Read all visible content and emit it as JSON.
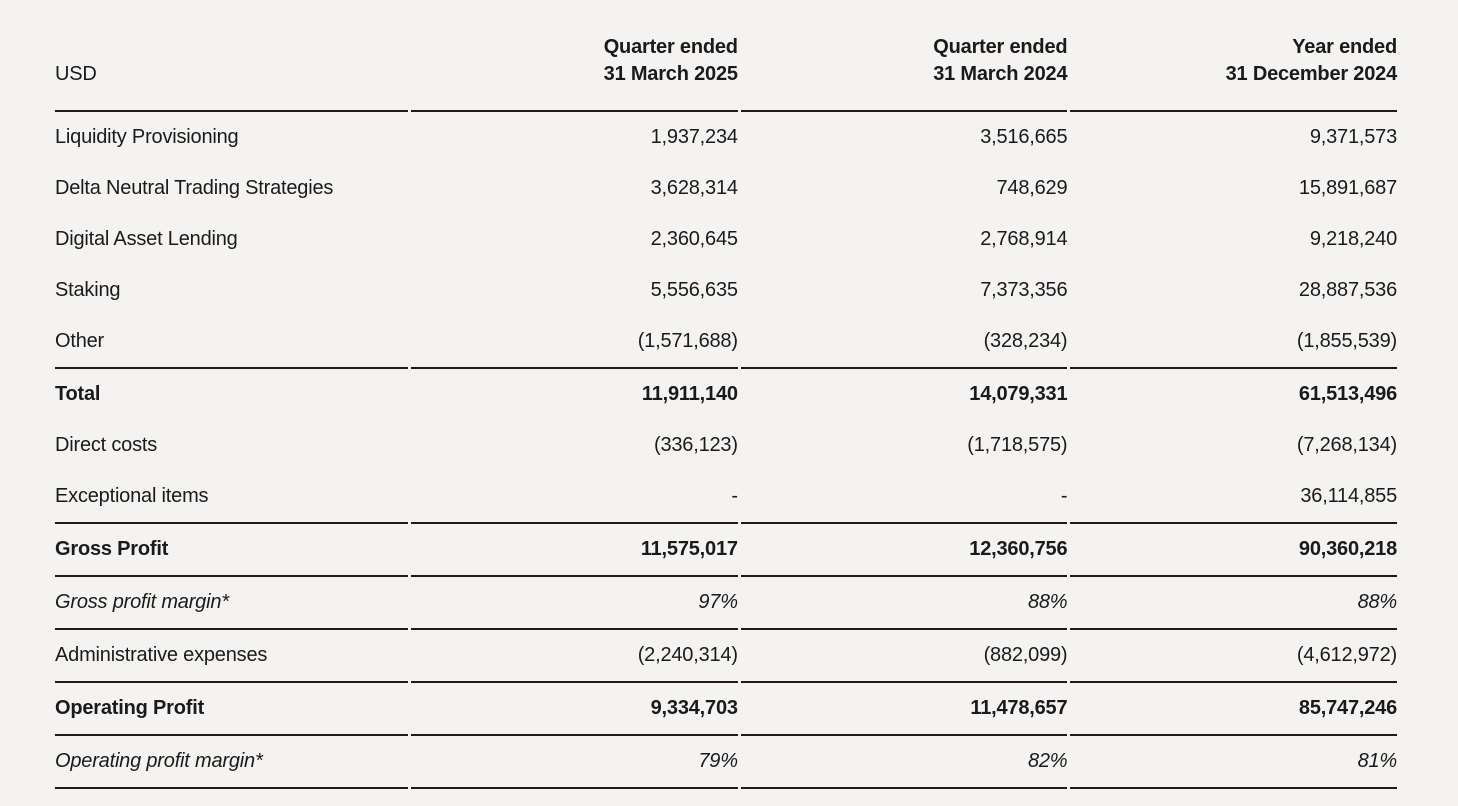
{
  "page": {
    "background_color": "#f4f3f1",
    "text_color": "#1a1a1a",
    "rule_color": "#1c1c1c"
  },
  "table": {
    "unit_label": "USD",
    "columns": [
      {
        "period": "Quarter ended",
        "date": "31 March 2025"
      },
      {
        "period": "Quarter ended",
        "date": "31 March 2024"
      },
      {
        "period": "Year ended",
        "date": "31 December 2024"
      }
    ],
    "rows": [
      {
        "label": "Liquidity Provisioning",
        "emphasis": "regular",
        "values": [
          "1,937,234",
          "3,516,665",
          "9,371,573"
        ]
      },
      {
        "label": "Delta Neutral Trading Strategies",
        "emphasis": "regular",
        "values": [
          "3,628,314",
          "748,629",
          "15,891,687"
        ]
      },
      {
        "label": "Digital Asset Lending",
        "emphasis": "regular",
        "values": [
          "2,360,645",
          "2,768,914",
          "9,218,240"
        ]
      },
      {
        "label": "Staking",
        "emphasis": "regular",
        "values": [
          "5,556,635",
          "7,373,356",
          "28,887,536"
        ]
      },
      {
        "label": "Other",
        "emphasis": "regular",
        "values": [
          "(1,571,688)",
          "(328,234)",
          "(1,855,539)"
        ]
      },
      {
        "label": "Total",
        "emphasis": "bold",
        "values": [
          "11,911,140",
          "14,079,331",
          "61,513,496"
        ]
      },
      {
        "label": "Direct costs",
        "emphasis": "regular",
        "values": [
          "(336,123)",
          "(1,718,575)",
          "(7,268,134)"
        ]
      },
      {
        "label": "Exceptional items",
        "emphasis": "regular",
        "values": [
          "-",
          "-",
          "36,114,855"
        ]
      },
      {
        "label": "Gross Profit",
        "emphasis": "bold",
        "values": [
          "11,575,017",
          "12,360,756",
          "90,360,218"
        ]
      },
      {
        "label": "Gross profit margin*",
        "emphasis": "italic",
        "values": [
          "97%",
          "88%",
          "88%"
        ]
      },
      {
        "label": "Administrative expenses",
        "emphasis": "regular",
        "values": [
          "(2,240,314)",
          "(882,099)",
          "(4,612,972)"
        ]
      },
      {
        "label": "Operating Profit",
        "emphasis": "bold",
        "values": [
          "9,334,703",
          "11,478,657",
          "85,747,246"
        ]
      },
      {
        "label": "Operating profit margin*",
        "emphasis": "italic",
        "values": [
          "79%",
          "82%",
          "81%"
        ]
      }
    ]
  }
}
